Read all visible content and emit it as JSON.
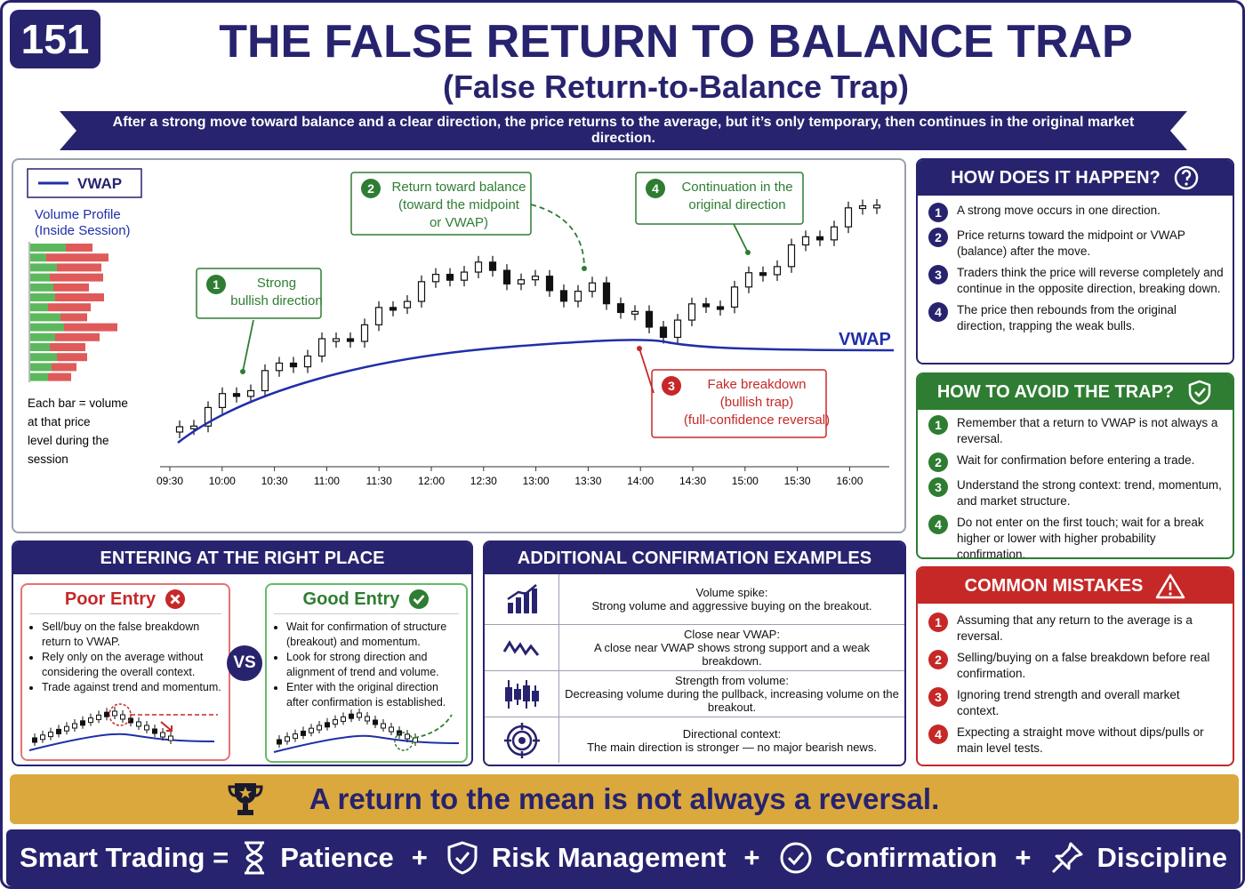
{
  "header": {
    "number": "151",
    "title": "THE FALSE RETURN TO BALANCE TRAP",
    "subtitle": "(False Return-to-Balance Trap)",
    "banner": "After a strong move toward balance and a clear direction, the price returns to the average, but it’s only temporary, then continues in the original market direction."
  },
  "chart": {
    "legend": "VWAP",
    "profile_title": "Volume Profile",
    "profile_subtitle": "(Inside Session)",
    "profile_note": "Each bar = volume at that price level during the session",
    "vwap_label": "VWAP",
    "times": [
      "09:30",
      "10:00",
      "10:30",
      "11:00",
      "11:30",
      "12:00",
      "12:30",
      "13:00",
      "13:30",
      "14:00",
      "14:30",
      "15:00",
      "15:30",
      "16:00"
    ],
    "callouts": [
      {
        "number": "1",
        "lines": [
          "Strong",
          "bullish direction"
        ]
      },
      {
        "number": "2",
        "lines": [
          "Return toward balance",
          "(toward the midpoint",
          "or VWAP)"
        ]
      },
      {
        "number": "3",
        "lines": [
          "Fake breakdown",
          "(bullish trap)",
          "(full-confidence reversal)"
        ]
      },
      {
        "number": "4",
        "lines": [
          "Continuation in the",
          "original direction"
        ]
      }
    ]
  },
  "how": {
    "title": "HOW DOES IT HAPPEN?",
    "items": [
      {
        "number": "1",
        "text": "A strong move occurs in one direction."
      },
      {
        "number": "2",
        "text": "Price returns toward the midpoint or VWAP (balance) after the move."
      },
      {
        "number": "3",
        "text": "Traders think the price will reverse completely and continue in the opposite direction, breaking down."
      },
      {
        "number": "4",
        "text": "The price then rebounds from the original direction, trapping the weak bulls."
      }
    ]
  },
  "avoid": {
    "title": "HOW TO AVOID THE TRAP?",
    "items": [
      {
        "number": "1",
        "text": "Remember that a return to VWAP is not always a reversal."
      },
      {
        "number": "2",
        "text": "Wait for confirmation before entering a trade."
      },
      {
        "number": "3",
        "text": "Understand the strong context: trend, momentum, and market structure."
      },
      {
        "number": "4",
        "text": "Do not enter on the first touch; wait for a break higher or lower with higher probability confirmation."
      }
    ]
  },
  "mistakes": {
    "title": "COMMON MISTAKES",
    "items": [
      {
        "number": "1",
        "text": "Assuming that any return to the average is a reversal."
      },
      {
        "number": "2",
        "text": "Selling/buying on a false breakdown before real confirmation."
      },
      {
        "number": "3",
        "text": "Ignoring trend strength and overall market context."
      },
      {
        "number": "4",
        "text": "Expecting a straight move without dips/pulls or main level tests."
      }
    ]
  },
  "entering": {
    "title": "ENTERING AT THE RIGHT PLACE",
    "vs": "VS",
    "poor": {
      "title": "Poor Entry",
      "items": [
        "Sell/buy on the false breakdown return to VWAP.",
        "Rely only on the average without considering the overall context.",
        "Trade against trend and momentum."
      ]
    },
    "good": {
      "title": "Good Entry",
      "items": [
        "Wait for confirmation of structure (breakout) and momentum.",
        "Look for strong direction and alignment of trend and volume.",
        "Enter with the original direction after confirmation is established."
      ]
    }
  },
  "confirm": {
    "title": "ADDITIONAL CONFIRMATION EXAMPLES",
    "rows": [
      {
        "title": "Volume spike:",
        "text": "Strong volume and aggressive buying on the breakout."
      },
      {
        "title": "Close near VWAP:",
        "text": "A close near VWAP shows strong support and a weak breakdown."
      },
      {
        "title": "Strength from volume:",
        "text": "Decreasing volume during the pullback, increasing volume on the breakout."
      },
      {
        "title": "Directional context:",
        "text": "The main direction is stronger — no major bearish news."
      }
    ]
  },
  "tagline": "A return to the mean is not always a reversal.",
  "footer": {
    "lead": "Smart Trading =",
    "separator": "+",
    "items": [
      "Patience",
      "Risk Management",
      "Confirmation",
      "Discipline"
    ]
  }
}
